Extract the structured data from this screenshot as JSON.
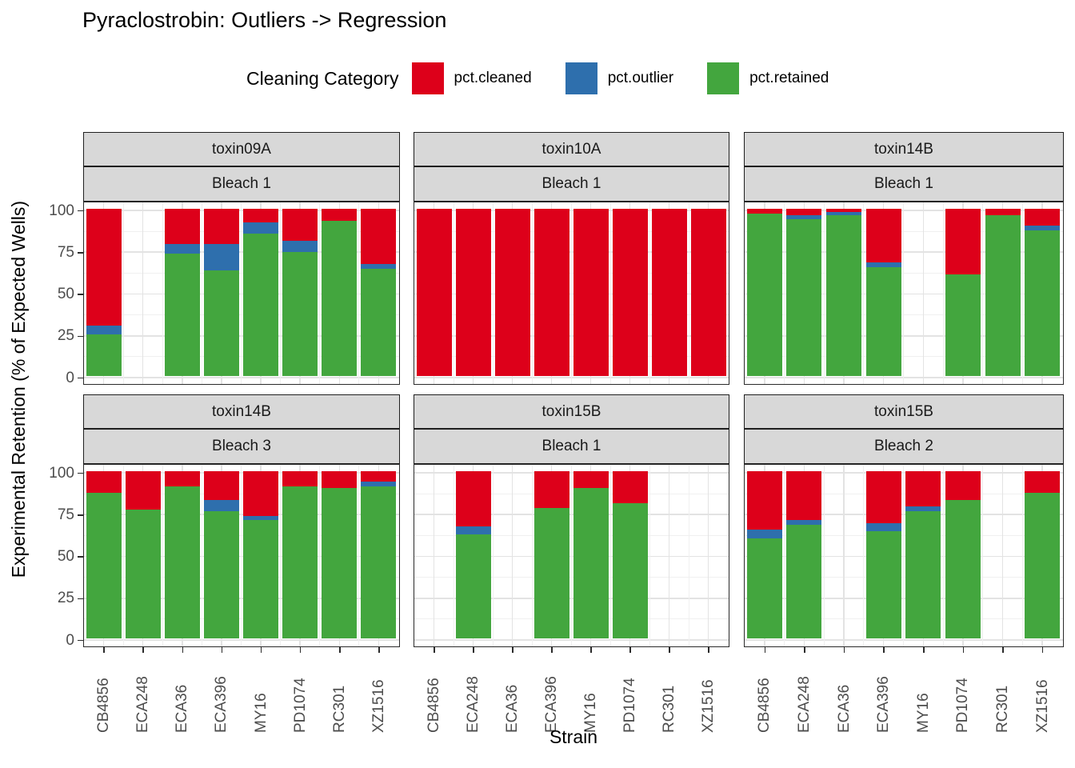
{
  "chart_data": {
    "type": "bar",
    "stacked": true,
    "title": "Pyraclostrobin: Outliers -> Regression",
    "legend_title": "Cleaning Category",
    "legend_position": "top",
    "legend_entries": [
      "pct.cleaned",
      "pct.outlier",
      "pct.retained"
    ],
    "series_colors": {
      "pct.cleaned": "#DD001A",
      "pct.outlier": "#2E6FAD",
      "pct.retained": "#43A63E"
    },
    "stack_order_bottom_to_top": [
      "pct.retained",
      "pct.outlier",
      "pct.cleaned"
    ],
    "xlabel": "Strain",
    "ylabel": "Experimental Retention (% of Expected Wells)",
    "x_categories": [
      "CB4856",
      "ECA248",
      "ECA36",
      "ECA396",
      "MY16",
      "PD1074",
      "RC301",
      "XZ1516"
    ],
    "y_ticks": [
      0,
      25,
      50,
      75,
      100
    ],
    "ylim": [
      0,
      100
    ],
    "grid": true,
    "facet_layout": {
      "rows": 2,
      "cols": 3
    },
    "facets": [
      {
        "row": 0,
        "col": 0,
        "strip_top": "toxin09A",
        "strip_bottom": "Bleach 1",
        "series": {
          "pct.retained": [
            25,
            null,
            73,
            63,
            85,
            74,
            93,
            64
          ],
          "pct.outlier": [
            5,
            null,
            6,
            16,
            7,
            7,
            0,
            3
          ],
          "pct.cleaned": [
            70,
            null,
            21,
            21,
            8,
            19,
            7,
            33
          ]
        }
      },
      {
        "row": 0,
        "col": 1,
        "strip_top": "toxin10A",
        "strip_bottom": "Bleach 1",
        "series": {
          "pct.retained": [
            0,
            0,
            0,
            0,
            0,
            0,
            0,
            0
          ],
          "pct.outlier": [
            0,
            0,
            0,
            0,
            0,
            0,
            0,
            0
          ],
          "pct.cleaned": [
            100,
            100,
            100,
            100,
            100,
            100,
            100,
            100
          ]
        }
      },
      {
        "row": 0,
        "col": 2,
        "strip_top": "toxin14B",
        "strip_bottom": "Bleach 1",
        "series": {
          "pct.retained": [
            97,
            94,
            96,
            65,
            null,
            61,
            96,
            87
          ],
          "pct.outlier": [
            0,
            2,
            2,
            3,
            null,
            0,
            0,
            3
          ],
          "pct.cleaned": [
            3,
            4,
            2,
            32,
            null,
            39,
            4,
            10
          ]
        }
      },
      {
        "row": 1,
        "col": 0,
        "strip_top": "toxin14B",
        "strip_bottom": "Bleach 3",
        "series": {
          "pct.retained": [
            87,
            77,
            91,
            76,
            71,
            91,
            90,
            91
          ],
          "pct.outlier": [
            0,
            0,
            0,
            7,
            2,
            0,
            0,
            3
          ],
          "pct.cleaned": [
            13,
            23,
            9,
            17,
            27,
            9,
            10,
            6
          ]
        }
      },
      {
        "row": 1,
        "col": 1,
        "strip_top": "toxin15B",
        "strip_bottom": "Bleach 1",
        "series": {
          "pct.retained": [
            null,
            62,
            null,
            78,
            90,
            81,
            null,
            null
          ],
          "pct.outlier": [
            null,
            5,
            null,
            0,
            0,
            0,
            null,
            null
          ],
          "pct.cleaned": [
            null,
            33,
            null,
            22,
            10,
            19,
            null,
            null
          ]
        }
      },
      {
        "row": 1,
        "col": 2,
        "strip_top": "toxin15B",
        "strip_bottom": "Bleach 2",
        "series": {
          "pct.retained": [
            60,
            68,
            null,
            64,
            76,
            83,
            null,
            87
          ],
          "pct.outlier": [
            5,
            3,
            null,
            5,
            3,
            0,
            null,
            0
          ],
          "pct.cleaned": [
            35,
            29,
            null,
            31,
            21,
            17,
            null,
            13
          ]
        }
      }
    ]
  }
}
